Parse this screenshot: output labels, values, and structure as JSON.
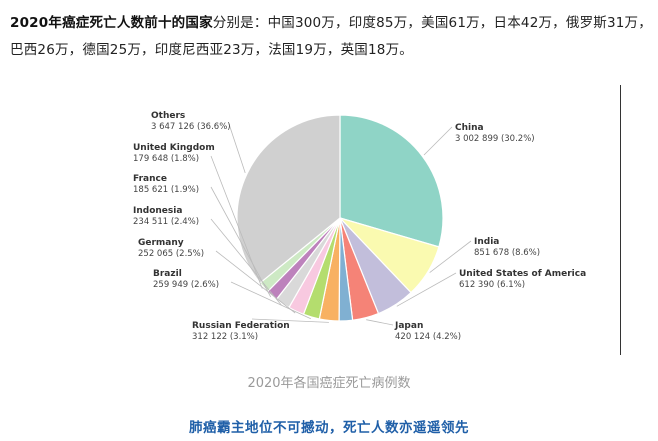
{
  "intro": {
    "title": "2020年癌症死亡人数前十的国家",
    "rest": "分别是：中国300万，印度85万，美国61万，日本42万，俄罗斯31万，巴西26万，德国25万，印度尼西亚23万，法国19万，英国18万。"
  },
  "caption": "2020年各国癌症死亡病例数",
  "subtitle": "肺癌霸主地位不可撼动，死亡人数亦遥遥领先",
  "chart_data": {
    "type": "pie",
    "title": "",
    "start": "top",
    "direction": "clockwise",
    "slices": [
      {
        "name": "China",
        "value": 3002899,
        "value_label": "3 002 899 (30.2%)",
        "color": "#8fd4c6"
      },
      {
        "name": "India",
        "value": 851678,
        "value_label": "851 678 (8.6%)",
        "color": "#fafab0"
      },
      {
        "name": "United States of America",
        "value": 612390,
        "value_label": "612 390 (6.1%)",
        "color": "#c2bedb"
      },
      {
        "name": "Japan",
        "value": 420124,
        "value_label": "420 124 (4.2%)",
        "color": "#f58377"
      },
      {
        "name": "",
        "value": 0,
        "value_label": "",
        "color": "#80b0d2"
      },
      {
        "name": "Russian Federation",
        "value": 312122,
        "value_label": "312 122 (3.1%)",
        "color": "#f8b162"
      },
      {
        "name": "Brazil",
        "value": 259949,
        "value_label": "259 949 (2.6%)",
        "color": "#b4dd6e"
      },
      {
        "name": "Germany",
        "value": 252065,
        "value_label": "252 065 (2.5%)",
        "color": "#f8c9e0"
      },
      {
        "name": "Indonesia",
        "value": 234511,
        "value_label": "234 511 (2.4%)",
        "color": "#d9d9d9"
      },
      {
        "name": "France",
        "value": 185621,
        "value_label": "185 621 (1.9%)",
        "color": "#bd82bc"
      },
      {
        "name": "United Kingdom",
        "value": 179648,
        "value_label": "179 648 (1.8%)",
        "color": "#cde9c4"
      },
      {
        "name": "Others",
        "value": 3647126,
        "value_label": "3 647 126 (36.6%)",
        "color": "#d0d0d0"
      }
    ]
  }
}
